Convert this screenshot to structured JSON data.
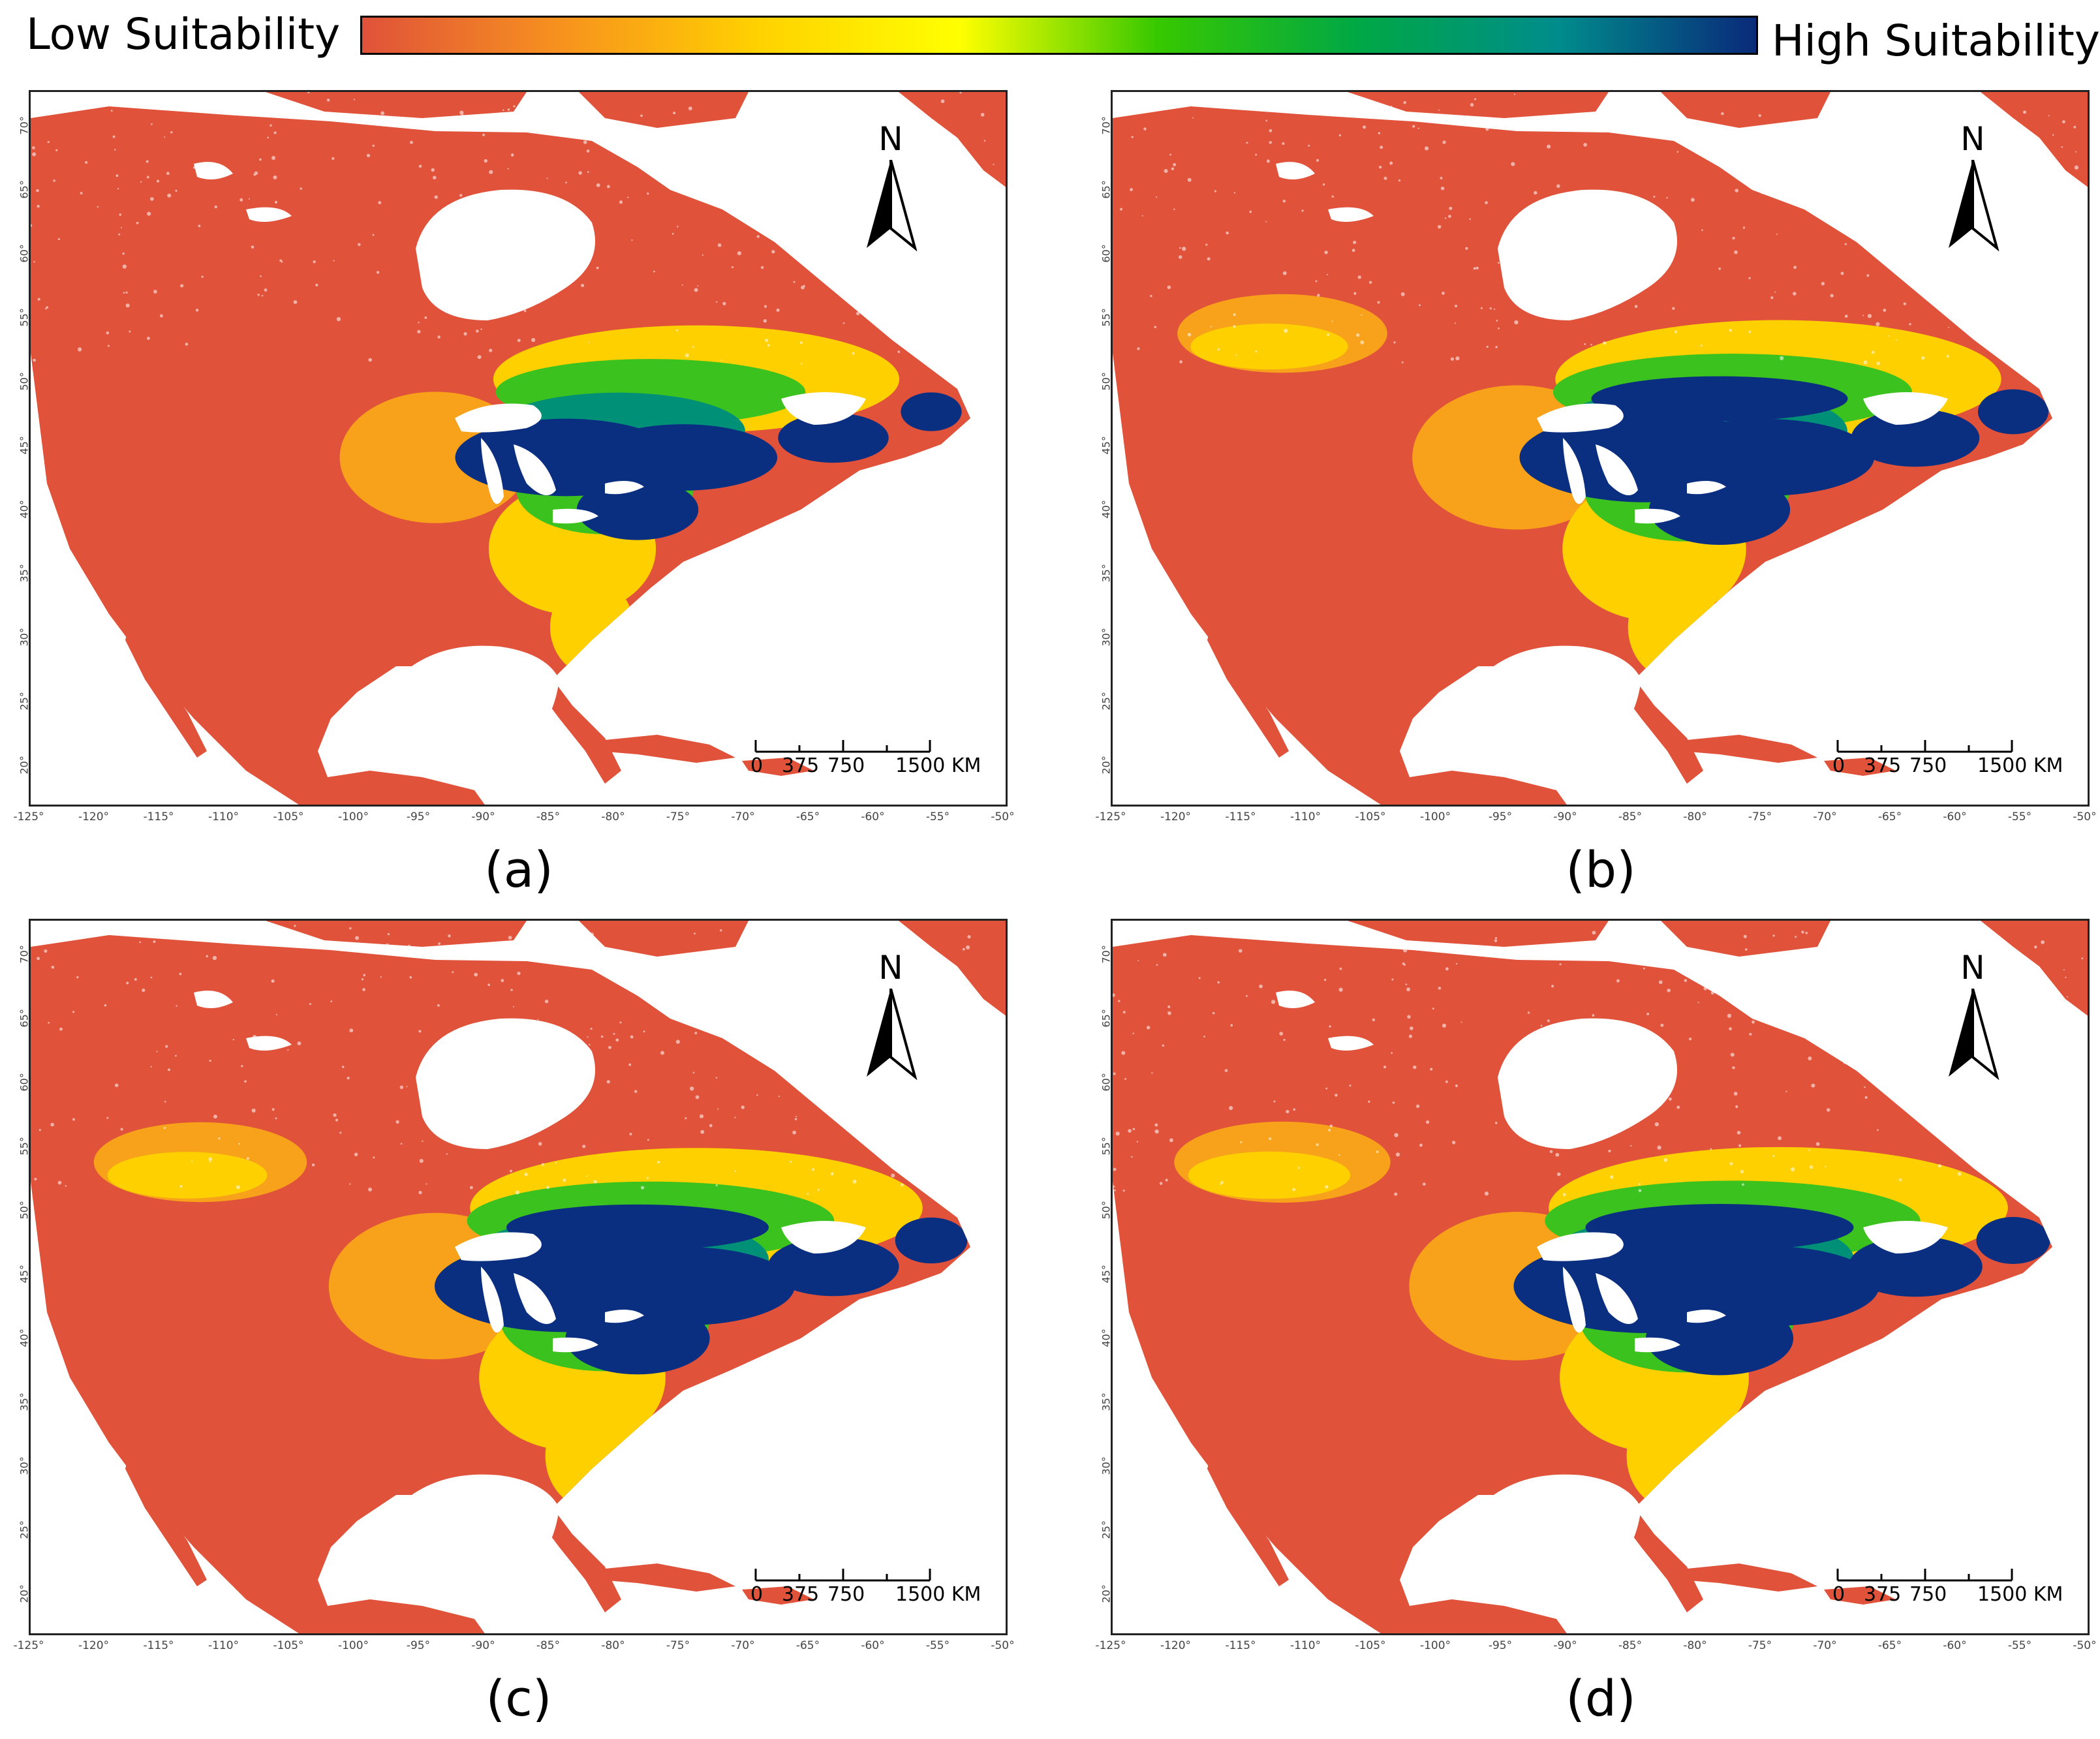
{
  "legend": {
    "low_label": "Low Suitability",
    "high_label": "High Suitability",
    "gradient_colors": [
      "#e0523a",
      "#f7921e",
      "#ffd200",
      "#ffff00",
      "#36c800",
      "#00a845",
      "#008c8c",
      "#0a2a7a"
    ]
  },
  "palette": {
    "land_low": "#e0523a",
    "orange": "#f7a21a",
    "yellow": "#ffd000",
    "green": "#3cc21e",
    "teal": "#009078",
    "high": "#0a2e80",
    "water": "#ffffff",
    "frame": "#222222"
  },
  "axes": {
    "x_ticks": [
      "-125°",
      "-120°",
      "-115°",
      "-110°",
      "-105°",
      "-100°",
      "-95°",
      "-90°",
      "-85°",
      "-80°",
      "-75°",
      "-70°",
      "-65°",
      "-60°",
      "-55°",
      "-50°"
    ],
    "y_ticks": [
      "70°",
      "65°",
      "60°",
      "55°",
      "50°",
      "45°",
      "40°",
      "35°",
      "30°",
      "25°",
      "20°"
    ]
  },
  "north_arrow": {
    "label": "N"
  },
  "scale_bar": {
    "ticks": [
      "0",
      "375",
      "750",
      "1500"
    ],
    "unit": "KM"
  },
  "panels": [
    {
      "id": "a",
      "label": "(a)",
      "relative_extent": 0.55
    },
    {
      "id": "b",
      "label": "(b)",
      "relative_extent": 0.85
    },
    {
      "id": "c",
      "label": "(c)",
      "relative_extent": 0.9
    },
    {
      "id": "d",
      "label": "(d)",
      "relative_extent": 0.95
    }
  ]
}
